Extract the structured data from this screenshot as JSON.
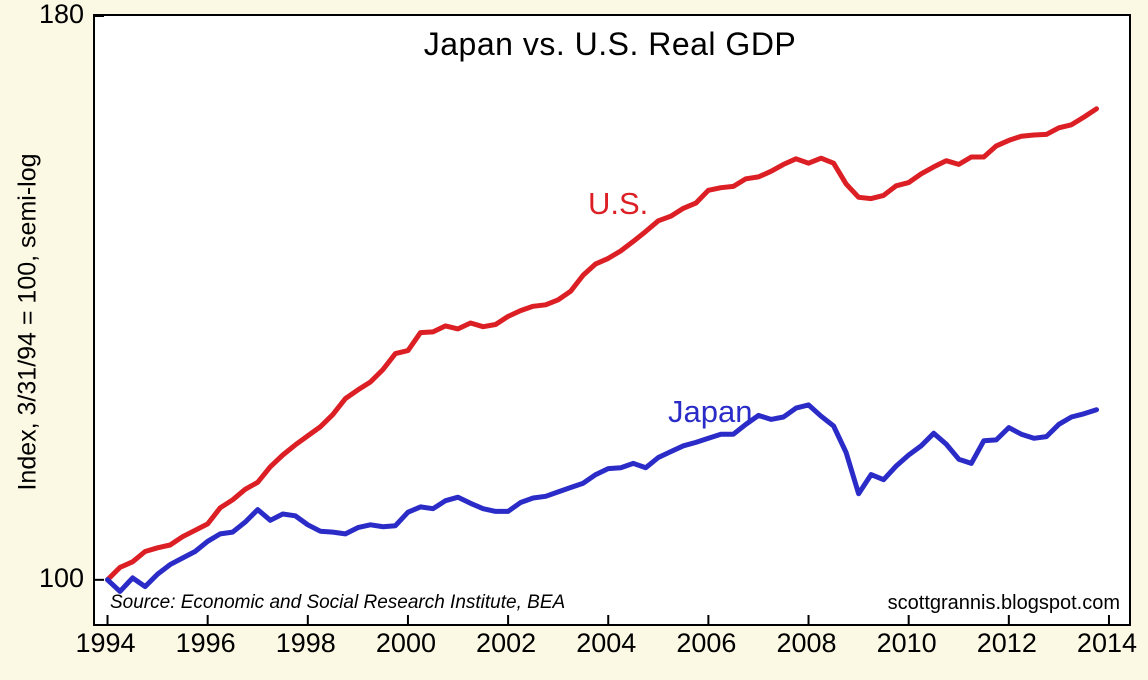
{
  "page": {
    "source_note": "Source:  Economic and Social Research Institute, BEA",
    "watermark": "scottgrannis.blogspot.com"
  },
  "colors": {
    "background": "#fbf8e3",
    "plot_background": "#ffffff",
    "axis": "#000000",
    "us_line": "#dc1f24",
    "japan_line": "#2b2cc8"
  },
  "chart_data": {
    "type": "line",
    "title": "Japan vs. U.S. Real GDP",
    "ylabel": "Index, 3/31/94 = 100, semi-log",
    "scale": "semi-log",
    "grid": false,
    "legend_position": "inline-labels",
    "xlim": [
      1993.75,
      2014.4
    ],
    "ylim": [
      95.5,
      180
    ],
    "x_ticks": [
      1994,
      1996,
      1998,
      2000,
      2002,
      2004,
      2006,
      2008,
      2010,
      2012,
      2014
    ],
    "y_ticks": [
      {
        "value": 180,
        "label": "180"
      },
      {
        "value": 100,
        "label": "100"
      }
    ],
    "x_start": 1994.0,
    "x_step": 0.25,
    "series": [
      {
        "name": "U.S.",
        "color": "#dc1f24",
        "values": [
          100.0,
          101.3,
          101.9,
          103.0,
          103.4,
          103.7,
          104.6,
          105.3,
          106.0,
          107.8,
          108.7,
          109.9,
          110.7,
          112.5,
          113.9,
          115.1,
          116.2,
          117.3,
          118.8,
          120.8,
          121.9,
          122.9,
          124.5,
          126.6,
          127.0,
          129.4,
          129.5,
          130.3,
          129.9,
          130.7,
          130.2,
          130.5,
          131.6,
          132.4,
          133.0,
          133.2,
          133.9,
          135.1,
          137.4,
          139.0,
          139.8,
          140.9,
          142.3,
          143.8,
          145.4,
          146.1,
          147.3,
          148.1,
          150.1,
          150.5,
          150.7,
          151.9,
          152.2,
          153.1,
          154.2,
          155.1,
          154.4,
          155.2,
          154.4,
          151.1,
          149.0,
          148.8,
          149.3,
          150.8,
          151.3,
          152.7,
          153.8,
          154.8,
          154.2,
          155.4,
          155.4,
          157.2,
          158.1,
          158.8,
          159.0,
          159.1,
          160.2,
          160.7,
          162.0,
          163.4
        ]
      },
      {
        "name": "Japan",
        "color": "#2b2cc8",
        "values": [
          100.0,
          98.8,
          100.2,
          99.3,
          100.6,
          101.6,
          102.3,
          103.0,
          104.1,
          104.9,
          105.1,
          106.2,
          107.6,
          106.4,
          107.1,
          106.9,
          105.9,
          105.2,
          105.1,
          104.9,
          105.6,
          105.9,
          105.7,
          105.8,
          107.3,
          107.9,
          107.7,
          108.6,
          109.0,
          108.3,
          107.7,
          107.4,
          107.4,
          108.4,
          108.9,
          109.1,
          109.6,
          110.1,
          110.6,
          111.6,
          112.3,
          112.4,
          112.9,
          112.4,
          113.6,
          114.3,
          115.0,
          115.4,
          115.9,
          116.4,
          116.4,
          117.6,
          118.7,
          118.2,
          118.5,
          119.6,
          120.0,
          118.6,
          117.4,
          114.2,
          109.4,
          111.6,
          111.0,
          112.6,
          113.9,
          115.0,
          116.5,
          115.2,
          113.4,
          112.9,
          115.6,
          115.7,
          117.2,
          116.4,
          115.9,
          116.1,
          117.6,
          118.5,
          118.9,
          119.4
        ]
      }
    ]
  }
}
